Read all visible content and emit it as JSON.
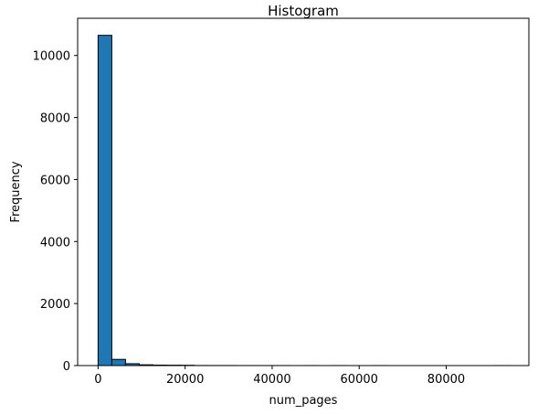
{
  "chart_data": {
    "type": "bar",
    "title": "Histogram",
    "xlabel": "num_pages",
    "ylabel": "Frequency",
    "xlim": [
      -4700,
      99000
    ],
    "ylim": [
      0,
      11200
    ],
    "xticks": [
      0,
      20000,
      40000,
      60000,
      80000
    ],
    "yticks": [
      0,
      2000,
      4000,
      6000,
      8000,
      10000
    ],
    "bin_width": 3150,
    "bins": [
      {
        "x0": 0,
        "x1": 3150,
        "count": 10650
      },
      {
        "x0": 3150,
        "x1": 6300,
        "count": 200
      },
      {
        "x0": 6300,
        "x1": 9450,
        "count": 60
      },
      {
        "x0": 9450,
        "x1": 12600,
        "count": 25
      },
      {
        "x0": 12600,
        "x1": 15750,
        "count": 15
      },
      {
        "x0": 15750,
        "x1": 18900,
        "count": 12
      },
      {
        "x0": 18900,
        "x1": 22050,
        "count": 10
      },
      {
        "x0": 22050,
        "x1": 25200,
        "count": 3
      },
      {
        "x0": 25200,
        "x1": 28350,
        "count": 2
      },
      {
        "x0": 28350,
        "x1": 31500,
        "count": 2
      },
      {
        "x0": 31500,
        "x1": 34650,
        "count": 1
      },
      {
        "x0": 34650,
        "x1": 37800,
        "count": 1
      },
      {
        "x0": 37800,
        "x1": 40950,
        "count": 1
      },
      {
        "x0": 40950,
        "x1": 44100,
        "count": 1
      },
      {
        "x0": 44100,
        "x1": 47250,
        "count": 0
      },
      {
        "x0": 47250,
        "x1": 50400,
        "count": 1
      },
      {
        "x0": 50400,
        "x1": 53550,
        "count": 0
      },
      {
        "x0": 53550,
        "x1": 56700,
        "count": 1
      },
      {
        "x0": 56700,
        "x1": 59850,
        "count": 0
      },
      {
        "x0": 59850,
        "x1": 63000,
        "count": 0
      },
      {
        "x0": 63000,
        "x1": 66150,
        "count": 1
      },
      {
        "x0": 66150,
        "x1": 69300,
        "count": 0
      },
      {
        "x0": 69300,
        "x1": 72450,
        "count": 0
      },
      {
        "x0": 72450,
        "x1": 75600,
        "count": 0
      },
      {
        "x0": 75600,
        "x1": 78750,
        "count": 0
      },
      {
        "x0": 78750,
        "x1": 81900,
        "count": 0
      },
      {
        "x0": 81900,
        "x1": 85050,
        "count": 0
      },
      {
        "x0": 85050,
        "x1": 88200,
        "count": 0
      },
      {
        "x0": 88200,
        "x1": 91350,
        "count": 0
      },
      {
        "x0": 91350,
        "x1": 94500,
        "count": 1
      }
    ],
    "bar_color": "#1f77b4",
    "edge_color": "#000000",
    "grid": false,
    "legend": "none"
  }
}
